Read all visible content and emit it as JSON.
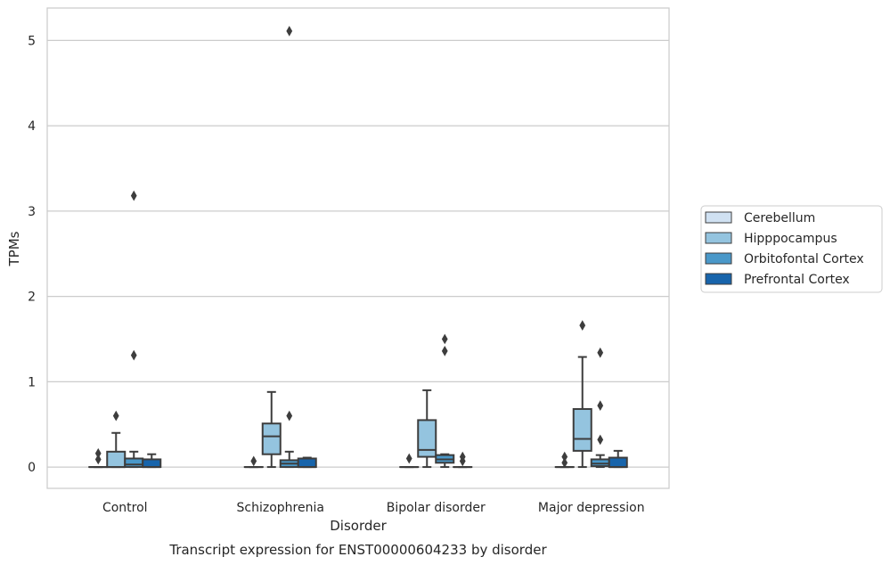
{
  "chart_data": {
    "type": "box",
    "title": "Transcript expression for ENST00000604233 by disorder",
    "xlabel": "Disorder",
    "ylabel": "TPMs",
    "ylim": [
      -0.25,
      5.38
    ],
    "yticks": [
      0,
      1,
      2,
      3,
      4,
      5
    ],
    "grid": "horizontal",
    "legend_position": "right",
    "categories": [
      "Control",
      "Schizophrenia",
      "Bipolar disorder",
      "Major depression"
    ],
    "series": [
      {
        "name": "Cerebellum",
        "color": "#d0e1f2",
        "boxes": [
          {
            "whislo": 0,
            "q1": 0,
            "med": 0,
            "q3": 0,
            "whishi": 0,
            "fliers": [
              0.09,
              0.16
            ]
          },
          {
            "whislo": 0,
            "q1": 0,
            "med": 0,
            "q3": 0,
            "whishi": 0,
            "fliers": [
              0.07
            ]
          },
          {
            "whislo": 0,
            "q1": 0,
            "med": 0,
            "q3": 0,
            "whishi": 0,
            "fliers": [
              0.1
            ]
          },
          {
            "whislo": 0,
            "q1": 0,
            "med": 0,
            "q3": 0,
            "whishi": 0,
            "fliers": [
              0.05,
              0.12
            ]
          }
        ]
      },
      {
        "name": "Hipppocampus",
        "color": "#94c4df",
        "boxes": [
          {
            "whislo": 0,
            "q1": 0,
            "med": 0,
            "q3": 0.18,
            "whishi": 0.4,
            "fliers": [
              0.6
            ]
          },
          {
            "whislo": 0,
            "q1": 0.15,
            "med": 0.36,
            "q3": 0.51,
            "whishi": 0.88,
            "fliers": []
          },
          {
            "whislo": 0,
            "q1": 0.12,
            "med": 0.2,
            "q3": 0.55,
            "whishi": 0.9,
            "fliers": []
          },
          {
            "whislo": 0,
            "q1": 0.19,
            "med": 0.33,
            "q3": 0.68,
            "whishi": 1.29,
            "fliers": [
              1.66
            ]
          }
        ]
      },
      {
        "name": "Orbitofontal Cortex",
        "color": "#4a98c9",
        "boxes": [
          {
            "whislo": 0,
            "q1": 0,
            "med": 0.03,
            "q3": 0.1,
            "whishi": 0.18,
            "fliers": [
              1.31,
              3.18
            ]
          },
          {
            "whislo": 0,
            "q1": 0,
            "med": 0.04,
            "q3": 0.08,
            "whishi": 0.18,
            "fliers": [
              0.6,
              5.11
            ]
          },
          {
            "whislo": 0,
            "q1": 0.05,
            "med": 0.09,
            "q3": 0.14,
            "whishi": 0.15,
            "fliers": [
              1.36,
              1.5
            ]
          },
          {
            "whislo": 0,
            "q1": 0.01,
            "med": 0.04,
            "q3": 0.09,
            "whishi": 0.14,
            "fliers": [
              0.32,
              0.72,
              1.34
            ]
          }
        ]
      },
      {
        "name": "Prefrontal Cortex",
        "color": "#1764ab",
        "boxes": [
          {
            "whislo": 0,
            "q1": 0,
            "med": 0,
            "q3": 0.09,
            "whishi": 0.15,
            "fliers": []
          },
          {
            "whislo": 0,
            "q1": 0,
            "med": 0,
            "q3": 0.1,
            "whishi": 0.11,
            "fliers": []
          },
          {
            "whislo": 0,
            "q1": 0,
            "med": 0,
            "q3": 0,
            "whishi": 0,
            "fliers": [
              0.07,
              0.12
            ]
          },
          {
            "whislo": 0,
            "q1": 0,
            "med": 0,
            "q3": 0.11,
            "whishi": 0.19,
            "fliers": []
          }
        ]
      }
    ]
  }
}
